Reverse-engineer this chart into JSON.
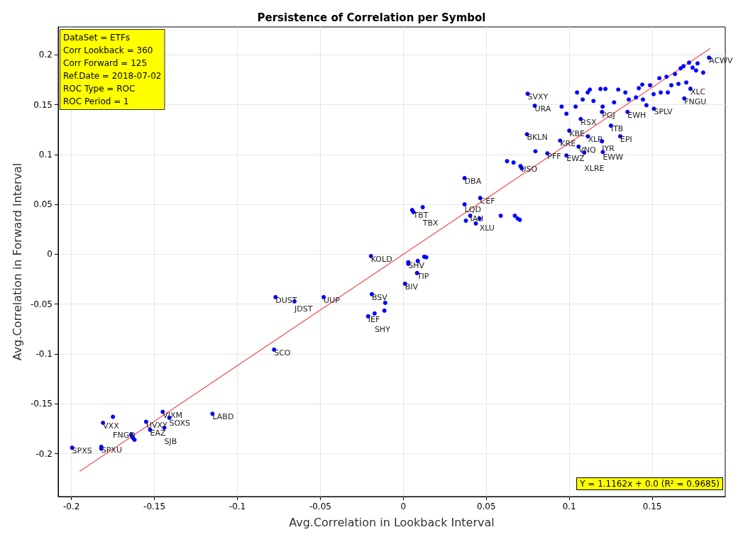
{
  "chart_data": {
    "type": "scatter",
    "title": "Persistence of Correlation per Symbol",
    "xlabel": "Avg.Correlation in Lookback Interval",
    "ylabel": "Avg.Correlation in Forward Interval",
    "annotations": [
      "DataSet = ETFs",
      "Corr Lookback = 360",
      "Corr Forward = 125",
      "Ref.Date = 2018-07-02",
      "ROC Type = ROC",
      "ROC Period = 1",
      "Y = 1.1162x + 0.0 (R² = 0.9685)"
    ],
    "xlim": [
      -0.208,
      0.194
    ],
    "ylim": [
      -0.243,
      0.228
    ],
    "xticks": [
      -0.2,
      -0.15,
      -0.1,
      -0.05,
      0,
      0.05,
      0.1,
      0.15
    ],
    "yticks": [
      -0.2,
      -0.15,
      -0.1,
      -0.05,
      0,
      0.05,
      0.1,
      0.15,
      0.2
    ],
    "grid": true,
    "series": [
      {
        "color": "#0000ff",
        "marker": "circle",
        "x": [
          -0.1996,
          -0.181,
          -0.175,
          -0.182,
          -0.182,
          -0.155,
          -0.145,
          -0.141,
          -0.1526,
          -0.144,
          -0.164,
          -0.163,
          -0.162,
          -0.115,
          -0.0779,
          -0.077,
          -0.0656,
          -0.048,
          -0.019,
          -0.0109,
          -0.0212,
          -0.0173,
          -0.0114,
          -0.0195,
          0.003,
          0.003,
          0.0087,
          0.0126,
          0.0138,
          0.0083,
          0.001,
          0.0053,
          0.0061,
          0.0117,
          0.0369,
          0.0463,
          0.0369,
          0.0403,
          0.0377,
          0.0459,
          0.0437,
          0.0587,
          0.0672,
          0.0689,
          0.0702,
          0.0625,
          0.0664,
          0.0706,
          0.0714,
          0.0749,
          0.0792,
          0.0745,
          0.0796,
          0.0868,
          0.0945,
          0.1,
          0.0983,
          0.1056,
          0.1112,
          0.109,
          0.1197,
          0.1202,
          0.1251,
          0.1307,
          0.0983,
          0.1069,
          0.1197,
          0.1351,
          0.151,
          0.1693,
          0.173,
          0.1842,
          0.1111,
          0.1124,
          0.1188,
          0.1218,
          0.1295,
          0.1338,
          0.1419,
          0.144,
          0.1487,
          0.1543,
          0.1586,
          0.1637,
          0.1671,
          0.1688,
          0.1722,
          0.1743,
          0.1764,
          0.1807,
          0.1773,
          0.1615,
          0.1658,
          0.1705,
          0.1508,
          0.1551,
          0.1594,
          0.1402,
          0.1444,
          0.1465,
          0.127,
          0.1359,
          0.1047,
          0.1081,
          0.1146,
          0.1201,
          0.0954,
          0.1038
        ],
        "values": [
          -0.194,
          -0.169,
          -0.163,
          -0.193,
          -0.195,
          -0.168,
          -0.158,
          -0.164,
          -0.176,
          -0.174,
          -0.181,
          -0.184,
          -0.186,
          -0.16,
          -0.0956,
          -0.043,
          -0.0472,
          -0.043,
          -0.04,
          -0.0487,
          -0.0622,
          -0.0593,
          -0.0565,
          -0.0018,
          -0.008,
          -0.0096,
          -0.0067,
          -0.0025,
          -0.003,
          -0.0188,
          -0.0295,
          0.0444,
          0.0423,
          0.0472,
          0.0764,
          0.0565,
          0.0501,
          0.0387,
          0.0337,
          0.0359,
          0.0309,
          0.0387,
          0.0387,
          0.0359,
          0.0345,
          0.0934,
          0.092,
          0.0884,
          0.0863,
          0.161,
          0.149,
          0.1204,
          0.1033,
          0.1012,
          0.114,
          0.124,
          0.0991,
          0.108,
          0.1183,
          0.102,
          0.1133,
          0.1026,
          0.129,
          0.1183,
          0.141,
          0.1357,
          0.1428,
          0.1428,
          0.146,
          0.1563,
          0.166,
          0.1972,
          0.1623,
          0.1652,
          0.1659,
          0.1659,
          0.1652,
          0.1623,
          0.1666,
          0.1702,
          0.1695,
          0.1766,
          0.178,
          0.1808,
          0.1865,
          0.1886,
          0.1922,
          0.1872,
          0.1844,
          0.1822,
          0.1915,
          0.1695,
          0.1709,
          0.1723,
          0.1606,
          0.1623,
          0.1623,
          0.1573,
          0.1552,
          0.1495,
          0.1524,
          0.1552,
          0.1623,
          0.1552,
          0.1538,
          0.1481,
          0.1481,
          0.1481
        ],
        "value_labels": [
          "SPXS",
          "VXX",
          "FNGD",
          "SPXU",
          null,
          "UVXY",
          "VIXM",
          "SOXS",
          "EAZ",
          "SJB",
          null,
          null,
          null,
          "LABD",
          "SCO",
          "DUST",
          "JDST",
          "UUP",
          "BSV",
          null,
          "IEF",
          "SHY",
          null,
          "KOLD",
          "SHV",
          null,
          null,
          null,
          null,
          "TIP",
          "BIV",
          null,
          "TBT",
          "TBX",
          "DBA",
          "CEF",
          "LQD",
          "IAU",
          null,
          "XLU",
          null,
          null,
          null,
          null,
          null,
          null,
          null,
          "USO",
          null,
          "SVXY",
          "URA",
          "BKLN",
          null,
          "PFF",
          "KRE",
          "KBE",
          "EWZ",
          "VNQ",
          "XLP",
          "XLRE",
          "IYR",
          "EWW",
          "ITB",
          "EPI",
          null,
          "RSX",
          "PGJ",
          "EWH",
          "SPLV",
          "FNGU",
          "XLC",
          "ACWV",
          null,
          null,
          null,
          null,
          null,
          null,
          null,
          null,
          null,
          null,
          null,
          null,
          null,
          null,
          null,
          null,
          null,
          null,
          null,
          null,
          null,
          null,
          null,
          null,
          null,
          null,
          null,
          null,
          null,
          null,
          null,
          null,
          null,
          null,
          null,
          null
        ]
      },
      {
        "type": "line",
        "marker": "none",
        "color": "#ff0000",
        "x": [
          -0.195,
          0.185
        ],
        "values": [
          -0.2177,
          0.2065
        ]
      }
    ]
  }
}
